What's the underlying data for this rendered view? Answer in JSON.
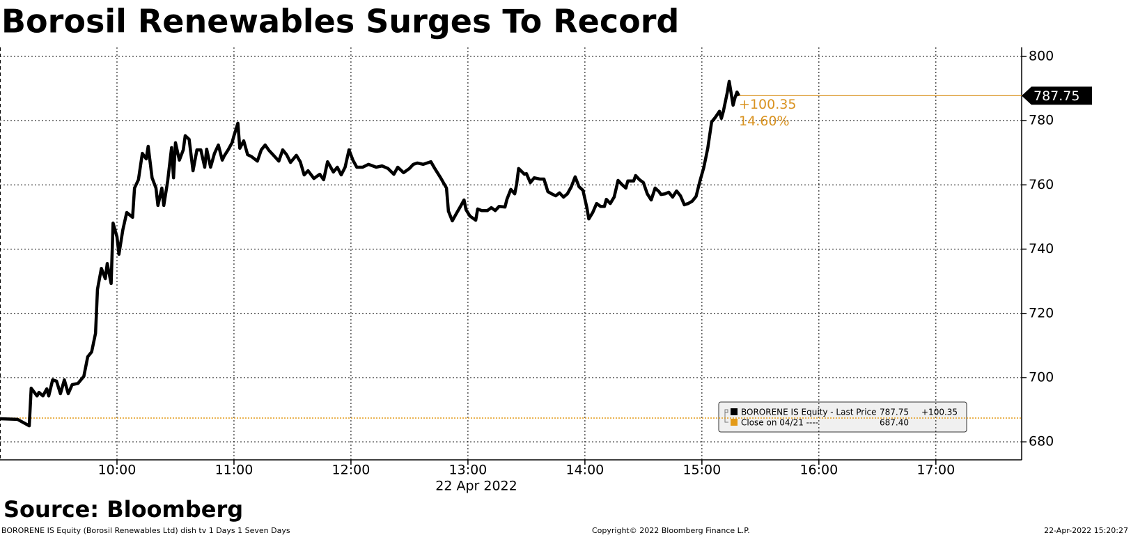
{
  "chart_data": {
    "type": "line",
    "title": "Borosil Renewables Surges To Record",
    "x_axis_label": "22 Apr 2022",
    "source": "Source: Bloomberg",
    "footer": {
      "left": "BORORENE IS Equity (Borosil Renewables Ltd) dish tv 1 Days 1 Seven Days",
      "center": "Copyright© 2022 Bloomberg Finance L.P.",
      "right": "22-Apr-2022 15:20:27"
    },
    "x": [
      "09:00",
      "09:09",
      "09:15",
      "09:16",
      "09:19",
      "09:20",
      "09:22",
      "09:24",
      "09:25",
      "09:27",
      "09:29",
      "09:31",
      "09:33",
      "09:35",
      "09:37",
      "09:40",
      "09:43",
      "09:45",
      "09:47",
      "09:49",
      "09:50",
      "09:52",
      "09:54",
      "09:55",
      "09:57",
      "09:58",
      "10:00",
      "10:01",
      "10:03",
      "10:05",
      "10:08",
      "10:09",
      "10:11",
      "10:13",
      "10:15",
      "10:16",
      "10:18",
      "10:20",
      "10:21",
      "10:23",
      "10:24",
      "10:26",
      "10:28",
      "10:29",
      "10:30",
      "10:32",
      "10:34",
      "10:35",
      "10:37",
      "10:39",
      "10:41",
      "10:43",
      "10:45",
      "10:46",
      "10:48",
      "10:50",
      "10:52",
      "10:54",
      "10:55",
      "10:57",
      "10:59",
      "11:00",
      "11:02",
      "11:03",
      "11:05",
      "11:07",
      "11:09",
      "11:12",
      "11:14",
      "11:16",
      "11:18",
      "11:20",
      "11:23",
      "11:25",
      "11:27",
      "11:29",
      "11:32",
      "11:34",
      "11:36",
      "11:38",
      "11:41",
      "11:44",
      "11:46",
      "11:48",
      "11:51",
      "11:53",
      "11:55",
      "11:57",
      "11:59",
      "12:01",
      "12:03",
      "12:06",
      "12:09",
      "12:13",
      "12:16",
      "12:19",
      "12:22",
      "12:24",
      "12:27",
      "12:30",
      "12:32",
      "12:34",
      "12:37",
      "12:41",
      "12:43",
      "12:46",
      "12:49",
      "12:50",
      "12:52",
      "12:54",
      "12:56",
      "12:58",
      "12:59",
      "13:01",
      "13:04",
      "13:05",
      "13:07",
      "13:10",
      "13:12",
      "13:14",
      "13:16",
      "13:19",
      "13:20",
      "13:22",
      "13:24",
      "13:25",
      "13:26",
      "13:29",
      "13:30",
      "13:32",
      "13:34",
      "13:37",
      "13:39",
      "13:41",
      "13:43",
      "13:45",
      "13:47",
      "13:49",
      "13:51",
      "13:53",
      "13:55",
      "13:57",
      "13:59",
      "14:01",
      "14:02",
      "14:04",
      "14:06",
      "14:08",
      "14:10",
      "14:11",
      "14:13",
      "14:15",
      "14:17",
      "14:19",
      "14:21",
      "14:22",
      "14:25",
      "14:26",
      "14:28",
      "14:30",
      "14:32",
      "14:34",
      "14:36",
      "14:38",
      "14:39",
      "14:41",
      "14:43",
      "14:45",
      "14:47",
      "14:49",
      "14:51",
      "14:53",
      "14:55",
      "14:57",
      "14:59",
      "15:01",
      "15:03",
      "15:05",
      "15:07",
      "15:09",
      "15:10",
      "15:11",
      "15:13",
      "15:14",
      "15:16",
      "15:17",
      "15:18",
      "15:19"
    ],
    "series": [
      {
        "name": "BORORENE IS Equity - Last Price",
        "color": "#000000",
        "values": [
          687.2,
          687.0,
          685.0,
          696.7,
          694.3,
          695.4,
          694.3,
          696.5,
          694.3,
          699.3,
          698.9,
          695.0,
          699.3,
          695.0,
          697.8,
          698.2,
          700.4,
          706.5,
          708.0,
          713.8,
          727.5,
          734.0,
          730.8,
          735.5,
          729.3,
          748.1,
          743.8,
          738.4,
          746.0,
          751.4,
          749.9,
          759.0,
          761.6,
          769.8,
          768.1,
          772.0,
          762.2,
          759.0,
          753.6,
          759.0,
          753.6,
          761.2,
          771.6,
          762.2,
          773.1,
          767.7,
          770.9,
          775.3,
          774.2,
          764.4,
          770.9,
          770.9,
          765.5,
          771.1,
          765.5,
          769.8,
          772.4,
          767.7,
          769.0,
          770.9,
          773.1,
          775.3,
          779.2,
          771.4,
          773.7,
          769.4,
          768.8,
          767.4,
          770.9,
          772.4,
          770.7,
          769.4,
          767.4,
          770.9,
          769.4,
          767.0,
          769.2,
          767.2,
          763.1,
          764.4,
          762.0,
          763.3,
          761.6,
          767.2,
          764.0,
          765.5,
          763.1,
          765.5,
          770.9,
          767.7,
          765.5,
          765.5,
          766.4,
          765.5,
          765.9,
          765.1,
          763.3,
          765.5,
          763.8,
          765.1,
          766.4,
          766.8,
          766.4,
          767.2,
          765.1,
          762.2,
          759.0,
          751.8,
          748.8,
          751.0,
          753.1,
          755.3,
          752.3,
          750.3,
          749.0,
          752.5,
          752.0,
          752.0,
          752.9,
          752.0,
          753.3,
          753.1,
          755.5,
          758.6,
          757.2,
          760.3,
          765.1,
          763.3,
          763.5,
          760.7,
          762.2,
          761.8,
          761.8,
          757.9,
          757.2,
          756.6,
          757.5,
          756.2,
          757.2,
          759.4,
          762.5,
          759.4,
          758.3,
          752.9,
          749.4,
          751.4,
          754.2,
          753.3,
          753.3,
          755.5,
          754.2,
          756.2,
          761.4,
          760.1,
          759.0,
          761.2,
          761.2,
          762.9,
          761.6,
          760.7,
          757.2,
          755.3,
          759.0,
          757.9,
          757.0,
          757.2,
          757.7,
          756.2,
          758.1,
          756.6,
          753.8,
          754.2,
          754.9,
          756.4,
          761.2,
          765.5,
          771.4,
          779.6,
          781.1,
          782.9,
          780.7,
          782.9,
          788.7,
          792.2,
          784.8,
          787.2,
          788.9,
          787.75
        ]
      }
    ],
    "last_price": 787.75,
    "change": {
      "value": 100.35,
      "label": "+100.35"
    },
    "change_pct": {
      "value": 14.6,
      "label": "14.60%"
    },
    "reference_line": {
      "name": "Close on 04/21 ----",
      "value": {
        "value": 687.4,
        "label": "687.40"
      },
      "color": "#e39a17"
    },
    "annotation_color": "#d9921f",
    "xlim": [
      "09:00",
      "17:44"
    ],
    "xticks": [
      "10:00",
      "11:00",
      "12:00",
      "13:00",
      "14:00",
      "15:00",
      "16:00",
      "17:00"
    ],
    "ylim": [
      674.4,
      802.8
    ],
    "yticks": [
      680,
      700,
      720,
      740,
      760,
      780,
      800
    ],
    "grid": true,
    "y_axis_side": "right"
  }
}
